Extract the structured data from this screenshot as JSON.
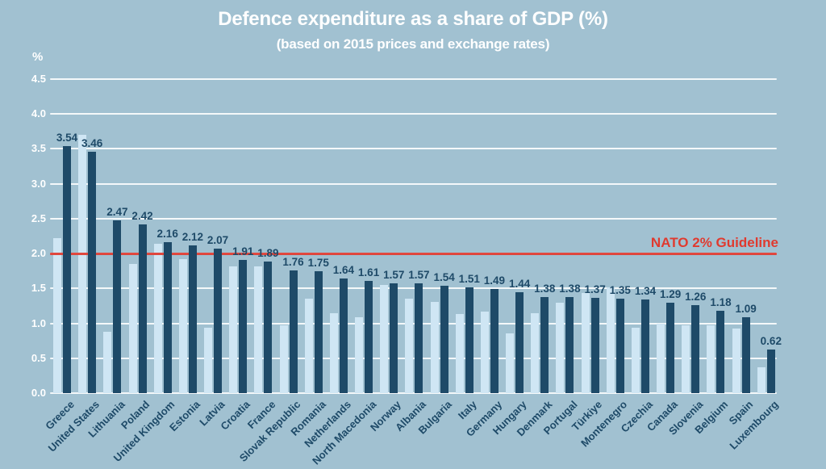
{
  "chart_data": {
    "type": "bar",
    "title": "Defence expenditure as a share of GDP (%)",
    "subtitle": "(based on 2015 prices and exchange rates)",
    "ylabel": "%",
    "ylim": [
      0,
      4.5
    ],
    "yticks": [
      0,
      0.5,
      1,
      1.5,
      2,
      2.5,
      3,
      3.5,
      4,
      4.5
    ],
    "grid": true,
    "legend": "none",
    "categories": [
      "Greece",
      "United States",
      "Lithuania",
      "Poland",
      "United Kingdom",
      "Estonia",
      "Latvia",
      "Croatia",
      "France",
      "Slovak Republic",
      "Romania",
      "Netherlands",
      "North Macedonia",
      "Norway",
      "Albania",
      "Bulgaria",
      "Italy",
      "Germany",
      "Hungary",
      "Denmark",
      "Portugal",
      "Türkiye",
      "Montenegro",
      "Czechia",
      "Canada",
      "Slovenia",
      "Belgium",
      "Spain",
      "Luxembourg"
    ],
    "series": [
      {
        "name": "series-light",
        "color": "#cfe6f4",
        "data_labels": false,
        "values_estimated_from_pixels": true,
        "values": [
          2.22,
          3.7,
          0.88,
          1.85,
          2.14,
          1.92,
          0.94,
          1.82,
          1.82,
          0.97,
          1.35,
          1.15,
          1.09,
          1.55,
          1.35,
          1.31,
          1.13,
          1.17,
          0.86,
          1.14,
          1.3,
          1.43,
          1.52,
          0.94,
          1.0,
          0.97,
          0.97,
          0.92,
          0.37
        ]
      },
      {
        "name": "series-dark",
        "color": "#1e4a68",
        "data_labels": true,
        "values": [
          3.54,
          3.46,
          2.47,
          2.42,
          2.16,
          2.12,
          2.07,
          1.91,
          1.89,
          1.76,
          1.75,
          1.64,
          1.61,
          1.57,
          1.57,
          1.54,
          1.51,
          1.49,
          1.44,
          1.38,
          1.38,
          1.37,
          1.35,
          1.34,
          1.29,
          1.26,
          1.18,
          1.09,
          0.62
        ]
      }
    ],
    "annotations": [
      {
        "type": "hline",
        "y": 2,
        "label": "NATO 2% Guideline",
        "color": "#e03a2f"
      }
    ]
  },
  "colors": {
    "background": "#a1c1d1",
    "light_bar": "#cfe6f4",
    "dark_bar": "#1e4a68",
    "navy_text": "#1e4a68",
    "red": "#e03a2f",
    "gridline": "#ffffff",
    "title_text": "#ffffff"
  }
}
